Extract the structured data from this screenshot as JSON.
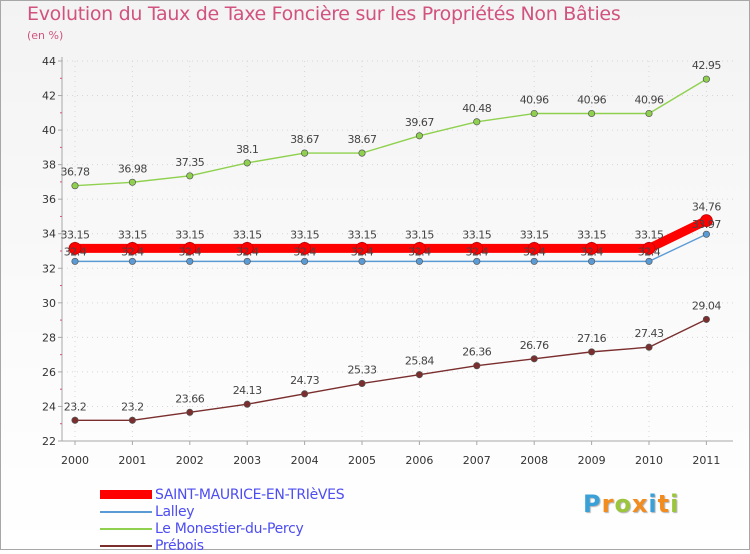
{
  "title": "Evolution du Taux de Taxe Foncière sur les Propriétés Non Bâties",
  "subtitle": "(en %)",
  "logo": {
    "letters": [
      "P",
      "r",
      "o",
      "x",
      "i",
      "t",
      "i"
    ],
    "colors": [
      "#3aa0d8",
      "#f28c1e",
      "#9bc53d",
      "#f28c1e",
      "#3aa0d8",
      "#f28c1e",
      "#9bc53d"
    ]
  },
  "chart_data": {
    "type": "line",
    "title": "Evolution du Taux de Taxe Foncière sur les Propriétés Non Bâties",
    "ylabel": "(en %)",
    "xlabel": "",
    "x": [
      "2000",
      "2001",
      "2002",
      "2003",
      "2004",
      "2005",
      "2006",
      "2007",
      "2008",
      "2009",
      "2010",
      "2011"
    ],
    "ylim": [
      22,
      44
    ],
    "yticks": [
      22,
      24,
      26,
      28,
      30,
      32,
      34,
      36,
      38,
      40,
      42,
      44
    ],
    "grid": true,
    "legend_position": "bottom-left",
    "series": [
      {
        "name": "SAINT-MAURICE-EN-TRIèVES",
        "color": "#ff0000",
        "values": [
          33.15,
          33.15,
          33.15,
          33.15,
          33.15,
          33.15,
          33.15,
          33.15,
          33.15,
          33.15,
          33.15,
          34.76
        ],
        "labels": [
          "33.15",
          "33.15",
          "33.15",
          "33.15",
          "33.15",
          "33.15",
          "33.15",
          "33.15",
          "33.15",
          "33.15",
          "33.15",
          "34.76"
        ]
      },
      {
        "name": "Lalley",
        "color": "#5b9bd5",
        "values": [
          32.4,
          32.4,
          32.4,
          32.4,
          32.4,
          32.4,
          32.4,
          32.4,
          32.4,
          32.4,
          32.4,
          33.97
        ],
        "labels": [
          "32.4",
          "32.4",
          "32.4",
          "32.4",
          "32.4",
          "32.4",
          "32.4",
          "32.4",
          "32.4",
          "32.4",
          "32.4",
          "33.97"
        ]
      },
      {
        "name": "Le Monestier-du-Percy",
        "color": "#8fd14f",
        "values": [
          36.78,
          36.98,
          37.35,
          38.1,
          38.67,
          38.67,
          39.67,
          40.48,
          40.96,
          40.96,
          40.96,
          42.95
        ],
        "labels": [
          "36.78",
          "36.98",
          "37.35",
          "38.1",
          "38.67",
          "38.67",
          "39.67",
          "40.48",
          "40.96",
          "40.96",
          "40.96",
          "42.95"
        ]
      },
      {
        "name": "Prébois",
        "color": "#7a2e2e",
        "values": [
          23.2,
          23.2,
          23.66,
          24.13,
          24.73,
          25.33,
          25.84,
          26.36,
          26.76,
          27.16,
          27.43,
          29.04
        ],
        "labels": [
          "23.2",
          "23.2",
          "23.66",
          "24.13",
          "24.73",
          "25.33",
          "25.84",
          "26.36",
          "26.76",
          "27.16",
          "27.43",
          "29.04"
        ]
      }
    ]
  }
}
